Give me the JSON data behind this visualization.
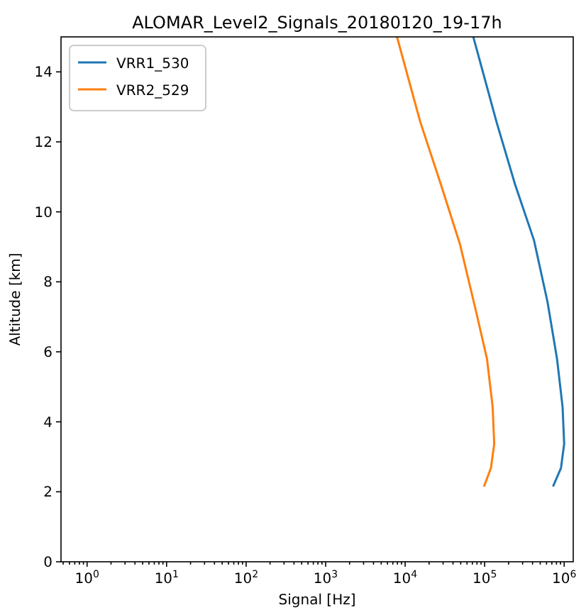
{
  "chart_data": {
    "type": "line",
    "title": "ALOMAR_Level2_Signals_20180120_19-17h",
    "xlabel": "Signal [Hz]",
    "ylabel": "Altitude [km]",
    "log": "x",
    "grid": false,
    "legend": "top left",
    "marker": "none",
    "line_style": "solid",
    "xlim": [
      0.47,
      1300000
    ],
    "ylim": [
      0,
      15
    ],
    "xticks": [
      {
        "value": 1,
        "label": "10$^{0}$"
      },
      {
        "value": 10,
        "label": "10$^{1}$"
      },
      {
        "value": 100,
        "label": "10$^{2}$"
      },
      {
        "value": 1000,
        "label": "10$^{3}$"
      },
      {
        "value": 10000,
        "label": "10$^{4}$"
      },
      {
        "value": 100000,
        "label": "10$^{5}$"
      },
      {
        "value": 1000000,
        "label": "10$^{6}$"
      },
      {
        "value": 0.5,
        "label": null
      },
      {
        "value": 0.6,
        "label": null
      },
      {
        "value": 0.7,
        "label": null
      },
      {
        "value": 0.8,
        "label": null
      },
      {
        "value": 0.9,
        "label": null
      },
      {
        "value": 2,
        "label": null
      },
      {
        "value": 3,
        "label": null
      },
      {
        "value": 4,
        "label": null
      },
      {
        "value": 5,
        "label": null
      },
      {
        "value": 6,
        "label": null
      },
      {
        "value": 7,
        "label": null
      },
      {
        "value": 8,
        "label": null
      },
      {
        "value": 9,
        "label": null
      },
      {
        "value": 20,
        "label": null
      },
      {
        "value": 30,
        "label": null
      },
      {
        "value": 40,
        "label": null
      },
      {
        "value": 50,
        "label": null
      },
      {
        "value": 60,
        "label": null
      },
      {
        "value": 70,
        "label": null
      },
      {
        "value": 80,
        "label": null
      },
      {
        "value": 90,
        "label": null
      },
      {
        "value": 200,
        "label": null
      },
      {
        "value": 300,
        "label": null
      },
      {
        "value": 400,
        "label": null
      },
      {
        "value": 500,
        "label": null
      },
      {
        "value": 600,
        "label": null
      },
      {
        "value": 700,
        "label": null
      },
      {
        "value": 800,
        "label": null
      },
      {
        "value": 900,
        "label": null
      },
      {
        "value": 2000,
        "label": null
      },
      {
        "value": 3000,
        "label": null
      },
      {
        "value": 4000,
        "label": null
      },
      {
        "value": 5000,
        "label": null
      },
      {
        "value": 6000,
        "label": null
      },
      {
        "value": 7000,
        "label": null
      },
      {
        "value": 8000,
        "label": null
      },
      {
        "value": 9000,
        "label": null
      },
      {
        "value": 20000,
        "label": null
      },
      {
        "value": 30000,
        "label": null
      },
      {
        "value": 40000,
        "label": null
      },
      {
        "value": 50000,
        "label": null
      },
      {
        "value": 60000,
        "label": null
      },
      {
        "value": 70000,
        "label": null
      },
      {
        "value": 80000,
        "label": null
      },
      {
        "value": 90000,
        "label": null
      },
      {
        "value": 200000,
        "label": null
      },
      {
        "value": 300000,
        "label": null
      },
      {
        "value": 400000,
        "label": null
      },
      {
        "value": 500000,
        "label": null
      },
      {
        "value": 600000,
        "label": null
      },
      {
        "value": 700000,
        "label": null
      },
      {
        "value": 800000,
        "label": null
      },
      {
        "value": 900000,
        "label": null
      }
    ],
    "yticks": [
      0,
      2,
      4,
      6,
      8,
      10,
      12,
      14
    ],
    "series": [
      {
        "name": "VRR1_530",
        "color": "#1f77b4",
        "x": [
          724000,
          912000,
          1000000,
          955000,
          813000,
          617000,
          417000,
          240000,
          141000,
          72000
        ],
        "values": [
          2.15,
          2.68,
          3.37,
          4.43,
          5.8,
          7.43,
          9.19,
          10.8,
          12.57,
          15
        ]
      },
      {
        "name": "VRR2_529",
        "color": "#ff7f0e",
        "x": [
          98000,
          120000,
          132000,
          126000,
          107000,
          78000,
          49000,
          28000,
          15500,
          7900
        ],
        "values": [
          2.15,
          2.68,
          3.37,
          4.43,
          5.8,
          7.15,
          9.07,
          10.8,
          12.57,
          15
        ]
      }
    ]
  }
}
